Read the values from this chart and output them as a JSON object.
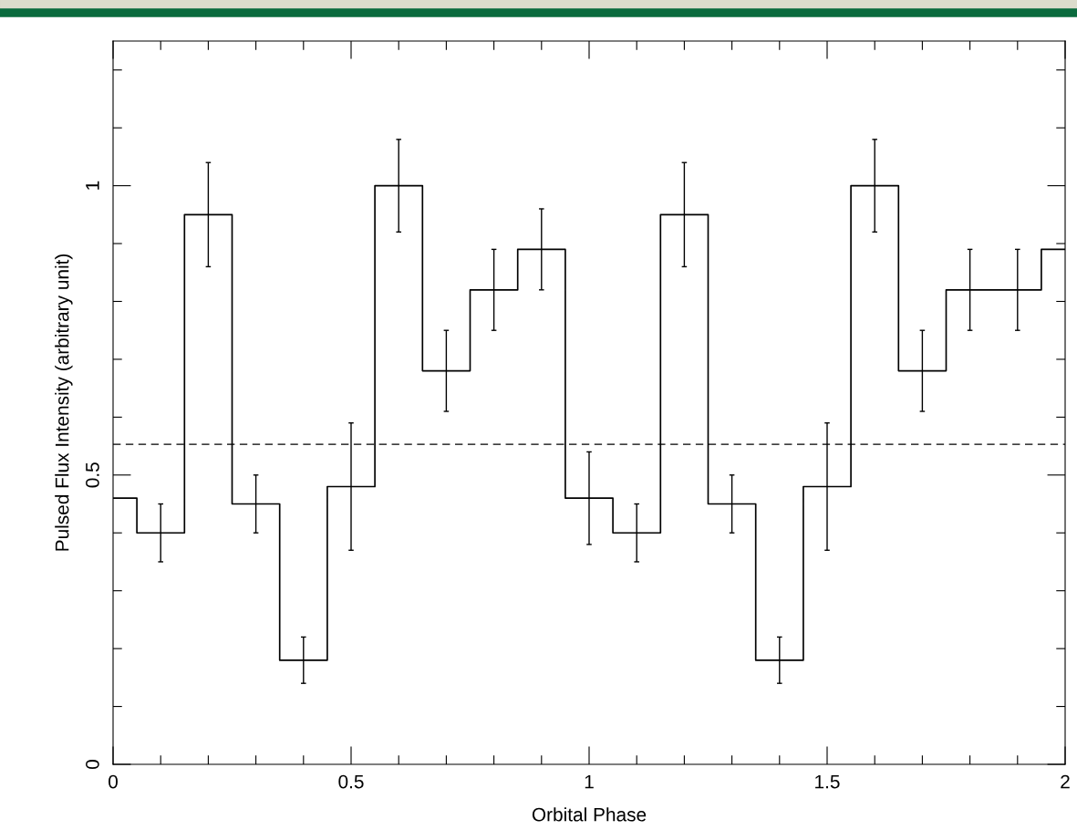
{
  "chart_data": {
    "type": "step",
    "xlabel": "Orbital Phase",
    "ylabel": "Pulsed Flux Intensity (arbitrary unit)",
    "x": [
      0,
      0.1,
      0.2,
      0.3,
      0.4,
      0.5,
      0.6,
      0.7,
      0.8,
      0.9,
      1.0,
      1.1,
      1.2,
      1.3,
      1.4,
      1.5,
      1.6,
      1.7,
      1.8,
      1.9,
      2.0
    ],
    "series": [
      {
        "color": "#000000",
        "values": [
          0.46,
          0.4,
          0.95,
          0.45,
          0.18,
          0.48,
          1.0,
          0.68,
          0.82,
          0.89,
          0.46,
          0.4,
          0.95,
          0.45,
          0.18,
          0.48,
          1.0,
          0.68,
          0.82,
          0.82,
          0.89
        ],
        "errors": [
          null,
          0.05,
          0.09,
          0.05,
          0.04,
          0.11,
          0.08,
          0.07,
          0.07,
          0.07,
          0.08,
          0.05,
          0.09,
          0.05,
          0.04,
          0.11,
          0.08,
          0.07,
          0.07,
          0.07,
          null
        ]
      }
    ],
    "xlim": [
      0,
      2
    ],
    "ylim": [
      0,
      1.25
    ],
    "xticks": [
      0,
      {
        "value": 0.1,
        "label": null
      },
      {
        "value": 0.2,
        "label": null
      },
      {
        "value": 0.3,
        "label": null
      },
      {
        "value": 0.4,
        "label": null
      },
      0.5,
      {
        "value": 0.6,
        "label": null
      },
      {
        "value": 0.7,
        "label": null
      },
      {
        "value": 0.8,
        "label": null
      },
      {
        "value": 0.9,
        "label": null
      },
      1,
      {
        "value": 1.1,
        "label": null
      },
      {
        "value": 1.2,
        "label": null
      },
      {
        "value": 1.3,
        "label": null
      },
      {
        "value": 1.4,
        "label": null
      },
      1.5,
      {
        "value": 1.6,
        "label": null
      },
      {
        "value": 1.7,
        "label": null
      },
      {
        "value": 1.8,
        "label": null
      },
      {
        "value": 1.9,
        "label": null
      },
      2
    ],
    "yticks": [
      0,
      {
        "value": 0.1,
        "label": null
      },
      {
        "value": 0.2,
        "label": null
      },
      {
        "value": 0.3,
        "label": null
      },
      {
        "value": 0.4,
        "label": null
      },
      0.5,
      {
        "value": 0.6,
        "label": null
      },
      {
        "value": 0.7,
        "label": null
      },
      {
        "value": 0.8,
        "label": null
      },
      {
        "value": 0.9,
        "label": null
      },
      1,
      {
        "value": 1.1,
        "label": null
      },
      {
        "value": 1.2,
        "label": null
      }
    ],
    "ref_lines": [
      {
        "axis": "y",
        "value": 0.553,
        "color": "#000000",
        "line_style": "dashed"
      }
    ],
    "grid": false,
    "legend": false
  }
}
